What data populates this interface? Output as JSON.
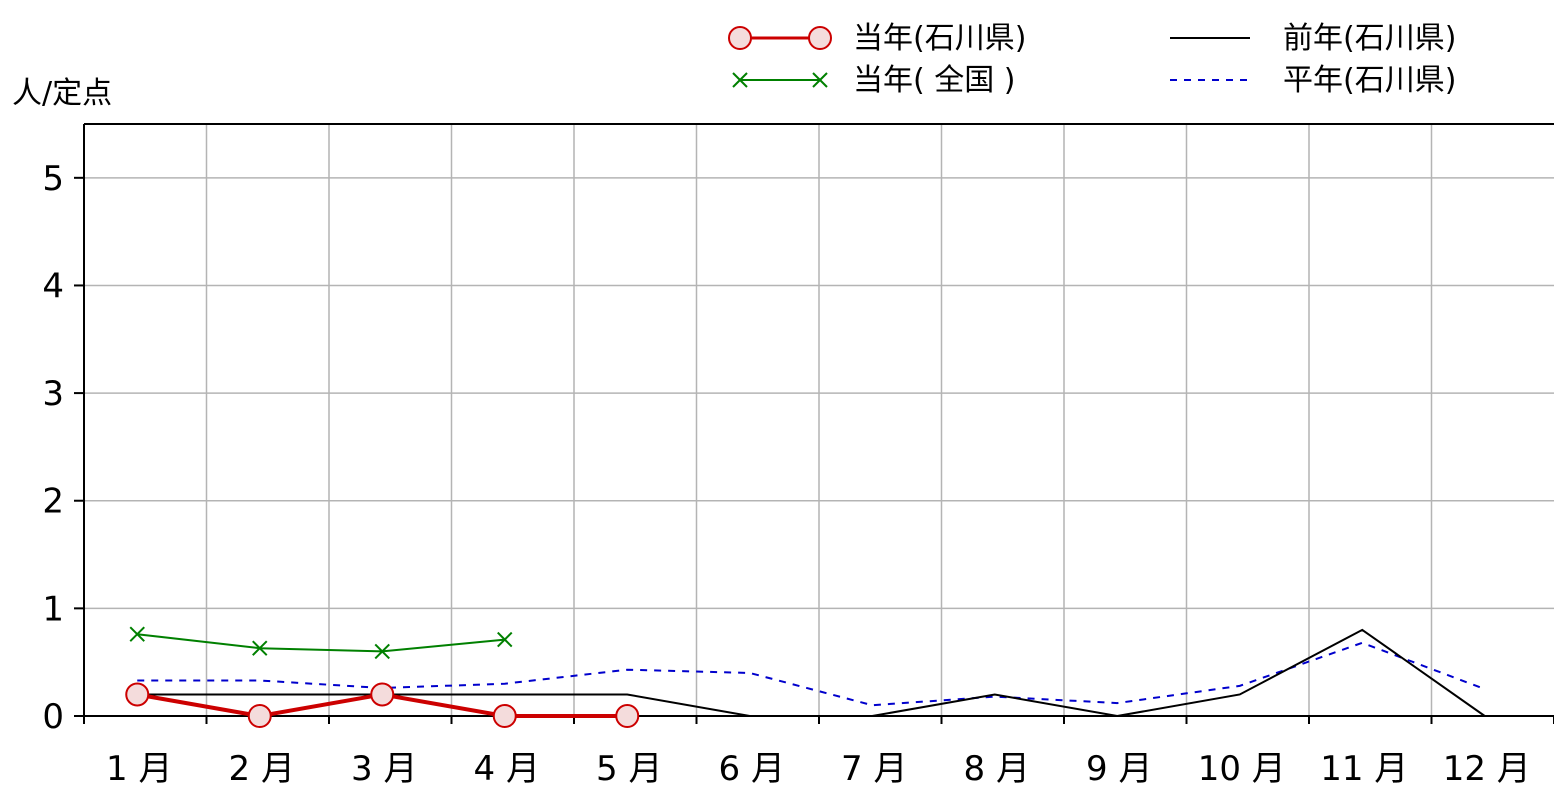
{
  "chart_data": {
    "type": "line",
    "title": "",
    "ylabel": "人/定点",
    "xlabel": "",
    "ylim": [
      0,
      5.5
    ],
    "y_ticks": [
      "0",
      "1",
      "2",
      "3",
      "4",
      "5"
    ],
    "y_tick_values": [
      0,
      1,
      2,
      3,
      4,
      5
    ],
    "x_tick_labels": [
      "1 月",
      "2 月",
      "3 月",
      "4 月",
      "5 月",
      "6 月",
      "7 月",
      "8 月",
      "9 月",
      "10 月",
      "11 月",
      "12 月"
    ],
    "x_range": [
      0.5,
      12.5
    ],
    "grid": true,
    "legend_placement": "top-right",
    "series": [
      {
        "name": "当年(石川県)",
        "color": "#cc0000",
        "marker": "circle",
        "x": [
          1,
          2,
          3,
          4,
          5
        ],
        "values": [
          0.2,
          0.0,
          0.2,
          0.0,
          0.0
        ]
      },
      {
        "name": "当年( 全国 )",
        "color": "#008000",
        "marker": "x",
        "x": [
          1,
          2,
          3,
          4
        ],
        "values": [
          0.76,
          0.63,
          0.6,
          0.71
        ]
      },
      {
        "name": "前年(石川県)",
        "color": "#000000",
        "marker": "none",
        "x": [
          1,
          2,
          3,
          4,
          5,
          6,
          7,
          8,
          9,
          10,
          11,
          12
        ],
        "values": [
          0.2,
          0.2,
          0.2,
          0.2,
          0.2,
          0.0,
          0.0,
          0.2,
          0.0,
          0.2,
          0.8,
          0.0
        ]
      },
      {
        "name": "平年(石川県)",
        "color": "#0000cc",
        "marker": "none",
        "dashed": true,
        "x": [
          1,
          2,
          3,
          4,
          5,
          6,
          7,
          8,
          9,
          10,
          11,
          12
        ],
        "values": [
          0.33,
          0.33,
          0.26,
          0.3,
          0.43,
          0.4,
          0.1,
          0.18,
          0.12,
          0.28,
          0.68,
          0.25
        ]
      }
    ]
  }
}
